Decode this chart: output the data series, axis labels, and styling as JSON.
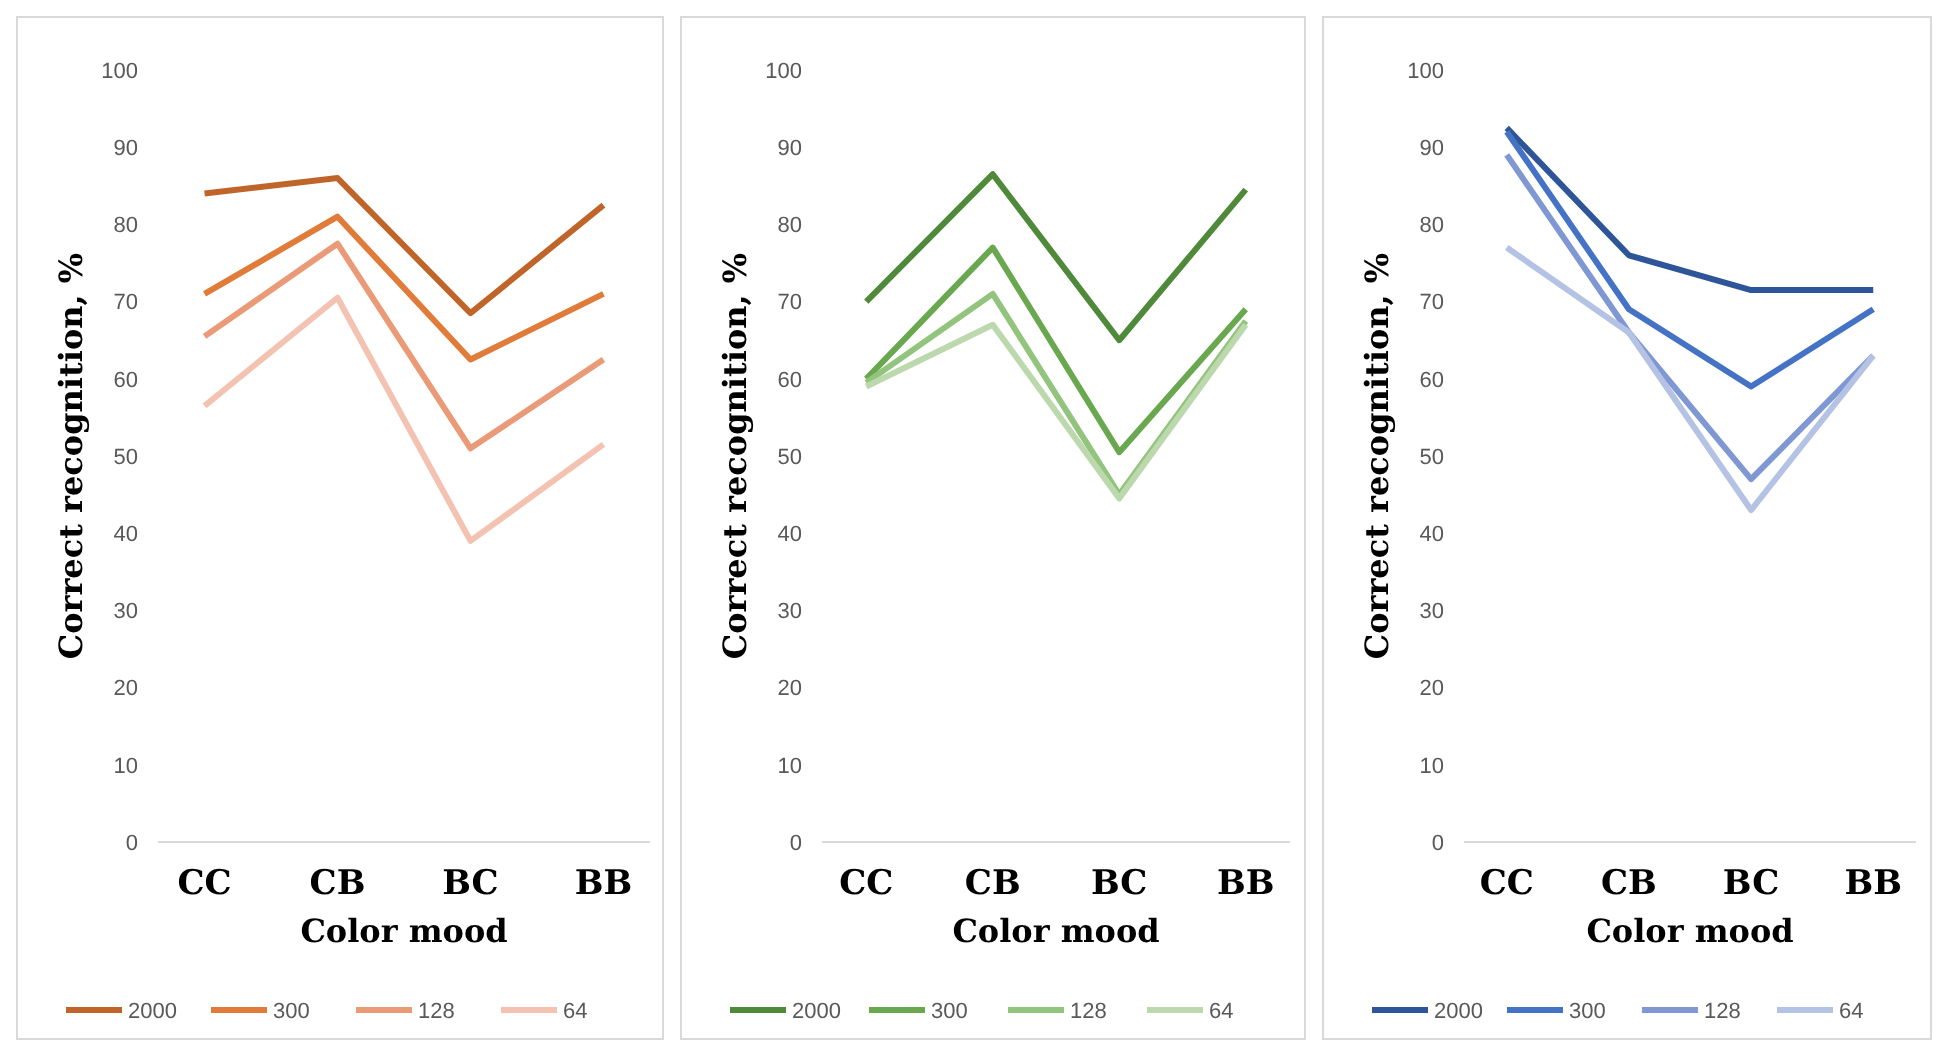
{
  "chart_data": [
    {
      "type": "line",
      "categories": [
        "CC",
        "CB",
        "BC",
        "BB"
      ],
      "xlabel": "Color mood",
      "ylabel": "Correct recognition, %",
      "ylim": [
        0,
        100
      ],
      "yticks": [
        0,
        10,
        20,
        30,
        40,
        50,
        60,
        70,
        80,
        90,
        100
      ],
      "grid": false,
      "legend": "bottom",
      "marker": "none",
      "series": [
        {
          "name": "2000",
          "color": "#c0652a",
          "values": [
            84,
            86,
            68.5,
            82.5
          ]
        },
        {
          "name": "300",
          "color": "#e07b39",
          "values": [
            71,
            81,
            62.5,
            71
          ]
        },
        {
          "name": "128",
          "color": "#eb9a78",
          "values": [
            65.5,
            77.5,
            51,
            62.5
          ]
        },
        {
          "name": "64",
          "color": "#f4c2b0",
          "values": [
            56.5,
            70.5,
            39,
            51.5
          ]
        }
      ]
    },
    {
      "type": "line",
      "categories": [
        "CC",
        "CB",
        "BC",
        "BB"
      ],
      "xlabel": "Color mood",
      "ylabel": "Correct recognition, %",
      "ylim": [
        0,
        100
      ],
      "yticks": [
        0,
        10,
        20,
        30,
        40,
        50,
        60,
        70,
        80,
        90,
        100
      ],
      "grid": false,
      "legend": "bottom",
      "marker": "none",
      "series": [
        {
          "name": "2000",
          "color": "#4e8a3a",
          "values": [
            70,
            86.5,
            65,
            84.5
          ]
        },
        {
          "name": "300",
          "color": "#6aa84f",
          "values": [
            60,
            77,
            50.5,
            69
          ]
        },
        {
          "name": "128",
          "color": "#93c47d",
          "values": [
            59.5,
            71,
            45,
            67.5
          ]
        },
        {
          "name": "64",
          "color": "#bcd9ad",
          "values": [
            59,
            67,
            44.5,
            67
          ]
        }
      ]
    },
    {
      "type": "line",
      "categories": [
        "CC",
        "CB",
        "BC",
        "BB"
      ],
      "xlabel": "Color mood",
      "ylabel": "Correct recognition, %",
      "ylim": [
        0,
        100
      ],
      "yticks": [
        0,
        10,
        20,
        30,
        40,
        50,
        60,
        70,
        80,
        90,
        100
      ],
      "grid": false,
      "legend": "bottom",
      "marker": "none",
      "series": [
        {
          "name": "2000",
          "color": "#2e5597",
          "values": [
            92.5,
            76,
            71.5,
            71.5
          ]
        },
        {
          "name": "300",
          "color": "#4472c4",
          "values": [
            92,
            69,
            59,
            69
          ]
        },
        {
          "name": "128",
          "color": "#7f98d4",
          "values": [
            89,
            66,
            47,
            63
          ]
        },
        {
          "name": "64",
          "color": "#b4c2e3",
          "values": [
            77,
            66,
            43,
            63
          ]
        }
      ]
    }
  ]
}
